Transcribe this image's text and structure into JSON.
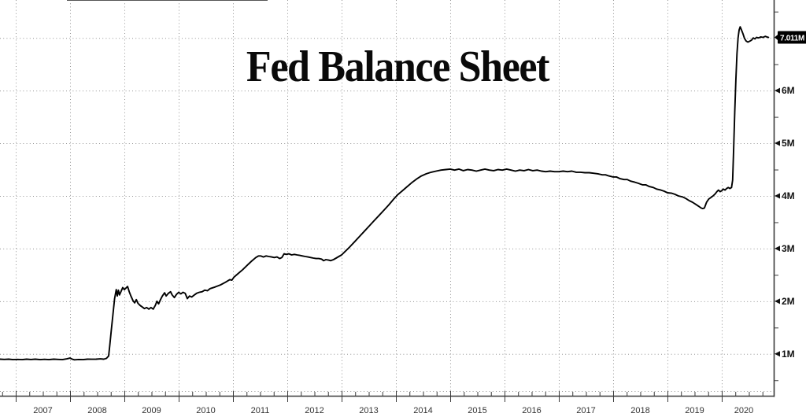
{
  "title": "Fed Balance Sheet",
  "badge": {
    "label": "7.011M",
    "bg_color": "#000000",
    "text_color": "#ffffff",
    "value": 7.011
  },
  "colors": {
    "series": "#000000",
    "grid": "#949494",
    "axis": "#3a3a3a",
    "tick_label": "#333333"
  },
  "y_axis": {
    "tick_labels": [
      "1M",
      "2M",
      "3M",
      "4M",
      "5M",
      "6M"
    ],
    "labeled_values": [
      1,
      2,
      3,
      4,
      5,
      6
    ],
    "grid_values": [
      1,
      2,
      3,
      4,
      5,
      6,
      7
    ],
    "minor_step": 0.5,
    "minor_min": 0.5,
    "minor_max": 7.5
  },
  "x_axis": {
    "year_labels": [
      "2007",
      "2008",
      "2009",
      "2010",
      "2011",
      "2012",
      "2013",
      "2014",
      "2015",
      "2016",
      "2017",
      "2018",
      "2019",
      "2020"
    ],
    "years": [
      2007,
      2008,
      2009,
      2010,
      2011,
      2012,
      2013,
      2014,
      2015,
      2016,
      2017,
      2018,
      2019,
      2020
    ],
    "minor_step": 0.25
  },
  "chart_data": {
    "type": "line",
    "title": "Fed Balance Sheet",
    "xlabel": "",
    "ylabel": "",
    "legend": null,
    "grid": "dotted",
    "xlim": [
      2006.71,
      2020.957
    ],
    "ylim": [
      0.19,
      7.72
    ],
    "last_value": 7.011,
    "points": [
      [
        2006.71,
        0.9
      ],
      [
        2006.79,
        0.895
      ],
      [
        2006.87,
        0.9
      ],
      [
        2006.95,
        0.89
      ],
      [
        2007.03,
        0.895
      ],
      [
        2007.12,
        0.89
      ],
      [
        2007.2,
        0.9
      ],
      [
        2007.28,
        0.893
      ],
      [
        2007.36,
        0.9
      ],
      [
        2007.45,
        0.89
      ],
      [
        2007.53,
        0.897
      ],
      [
        2007.61,
        0.89
      ],
      [
        2007.7,
        0.9
      ],
      [
        2007.78,
        0.895
      ],
      [
        2007.86,
        0.89
      ],
      [
        2007.94,
        0.905
      ],
      [
        2008.0,
        0.92
      ],
      [
        2008.04,
        0.9
      ],
      [
        2008.08,
        0.888
      ],
      [
        2008.16,
        0.893
      ],
      [
        2008.24,
        0.89
      ],
      [
        2008.32,
        0.9
      ],
      [
        2008.4,
        0.898
      ],
      [
        2008.48,
        0.9
      ],
      [
        2008.56,
        0.905
      ],
      [
        2008.62,
        0.9
      ],
      [
        2008.67,
        0.915
      ],
      [
        2008.71,
        0.96
      ],
      [
        2008.73,
        1.15
      ],
      [
        2008.76,
        1.45
      ],
      [
        2008.79,
        1.75
      ],
      [
        2008.82,
        2.05
      ],
      [
        2008.85,
        2.22
      ],
      [
        2008.87,
        2.1
      ],
      [
        2008.89,
        2.21
      ],
      [
        2008.91,
        2.12
      ],
      [
        2008.94,
        2.19
      ],
      [
        2008.97,
        2.26
      ],
      [
        2009.0,
        2.22
      ],
      [
        2009.03,
        2.25
      ],
      [
        2009.06,
        2.28
      ],
      [
        2009.09,
        2.18
      ],
      [
        2009.12,
        2.1
      ],
      [
        2009.16,
        2.01
      ],
      [
        2009.19,
        1.97
      ],
      [
        2009.22,
        2.03
      ],
      [
        2009.25,
        1.96
      ],
      [
        2009.29,
        1.92
      ],
      [
        2009.33,
        1.89
      ],
      [
        2009.37,
        1.86
      ],
      [
        2009.41,
        1.88
      ],
      [
        2009.45,
        1.85
      ],
      [
        2009.49,
        1.88
      ],
      [
        2009.53,
        1.85
      ],
      [
        2009.57,
        1.92
      ],
      [
        2009.6,
        2.0
      ],
      [
        2009.63,
        1.95
      ],
      [
        2009.67,
        2.04
      ],
      [
        2009.7,
        2.1
      ],
      [
        2009.74,
        2.16
      ],
      [
        2009.77,
        2.1
      ],
      [
        2009.81,
        2.15
      ],
      [
        2009.85,
        2.18
      ],
      [
        2009.88,
        2.12
      ],
      [
        2009.92,
        2.07
      ],
      [
        2009.96,
        2.13
      ],
      [
        2010.0,
        2.17
      ],
      [
        2010.04,
        2.14
      ],
      [
        2010.08,
        2.17
      ],
      [
        2010.12,
        2.15
      ],
      [
        2010.16,
        2.05
      ],
      [
        2010.2,
        2.1
      ],
      [
        2010.24,
        2.08
      ],
      [
        2010.29,
        2.12
      ],
      [
        2010.33,
        2.15
      ],
      [
        2010.38,
        2.17
      ],
      [
        2010.43,
        2.18
      ],
      [
        2010.48,
        2.21
      ],
      [
        2010.53,
        2.2
      ],
      [
        2010.58,
        2.24
      ],
      [
        2010.67,
        2.27
      ],
      [
        2010.77,
        2.31
      ],
      [
        2010.86,
        2.36
      ],
      [
        2010.94,
        2.41
      ],
      [
        2010.98,
        2.4
      ],
      [
        2011.02,
        2.46
      ],
      [
        2011.1,
        2.53
      ],
      [
        2011.18,
        2.6
      ],
      [
        2011.26,
        2.68
      ],
      [
        2011.34,
        2.76
      ],
      [
        2011.42,
        2.83
      ],
      [
        2011.47,
        2.86
      ],
      [
        2011.51,
        2.86
      ],
      [
        2011.56,
        2.84
      ],
      [
        2011.61,
        2.86
      ],
      [
        2011.66,
        2.85
      ],
      [
        2011.71,
        2.84
      ],
      [
        2011.76,
        2.83
      ],
      [
        2011.81,
        2.84
      ],
      [
        2011.86,
        2.81
      ],
      [
        2011.9,
        2.83
      ],
      [
        2011.94,
        2.9
      ],
      [
        2011.98,
        2.89
      ],
      [
        2012.03,
        2.9
      ],
      [
        2012.08,
        2.88
      ],
      [
        2012.13,
        2.89
      ],
      [
        2012.18,
        2.88
      ],
      [
        2012.23,
        2.87
      ],
      [
        2012.28,
        2.86
      ],
      [
        2012.33,
        2.85
      ],
      [
        2012.38,
        2.84
      ],
      [
        2012.43,
        2.83
      ],
      [
        2012.48,
        2.82
      ],
      [
        2012.53,
        2.81
      ],
      [
        2012.58,
        2.81
      ],
      [
        2012.63,
        2.8
      ],
      [
        2012.67,
        2.77
      ],
      [
        2012.71,
        2.79
      ],
      [
        2012.76,
        2.78
      ],
      [
        2012.8,
        2.77
      ],
      [
        2012.85,
        2.79
      ],
      [
        2012.9,
        2.82
      ],
      [
        2012.95,
        2.85
      ],
      [
        2013.0,
        2.88
      ],
      [
        2013.07,
        2.95
      ],
      [
        2013.15,
        3.03
      ],
      [
        2013.24,
        3.13
      ],
      [
        2013.33,
        3.23
      ],
      [
        2013.42,
        3.33
      ],
      [
        2013.51,
        3.43
      ],
      [
        2013.6,
        3.53
      ],
      [
        2013.69,
        3.63
      ],
      [
        2013.78,
        3.73
      ],
      [
        2013.87,
        3.83
      ],
      [
        2013.96,
        3.94
      ],
      [
        2014.03,
        4.02
      ],
      [
        2014.11,
        4.09
      ],
      [
        2014.2,
        4.17
      ],
      [
        2014.29,
        4.25
      ],
      [
        2014.38,
        4.32
      ],
      [
        2014.47,
        4.38
      ],
      [
        2014.56,
        4.42
      ],
      [
        2014.65,
        4.45
      ],
      [
        2014.74,
        4.47
      ],
      [
        2014.83,
        4.49
      ],
      [
        2014.92,
        4.5
      ],
      [
        2015.0,
        4.51
      ],
      [
        2015.08,
        4.49
      ],
      [
        2015.16,
        4.51
      ],
      [
        2015.24,
        4.48
      ],
      [
        2015.32,
        4.5
      ],
      [
        2015.4,
        4.49
      ],
      [
        2015.48,
        4.47
      ],
      [
        2015.56,
        4.49
      ],
      [
        2015.64,
        4.51
      ],
      [
        2015.72,
        4.49
      ],
      [
        2015.8,
        4.48
      ],
      [
        2015.88,
        4.5
      ],
      [
        2015.96,
        4.49
      ],
      [
        2016.04,
        4.51
      ],
      [
        2016.12,
        4.49
      ],
      [
        2016.2,
        4.47
      ],
      [
        2016.28,
        4.49
      ],
      [
        2016.36,
        4.48
      ],
      [
        2016.44,
        4.5
      ],
      [
        2016.52,
        4.48
      ],
      [
        2016.6,
        4.49
      ],
      [
        2016.68,
        4.47
      ],
      [
        2016.76,
        4.46
      ],
      [
        2016.84,
        4.47
      ],
      [
        2016.92,
        4.46
      ],
      [
        2017.0,
        4.46
      ],
      [
        2017.08,
        4.47
      ],
      [
        2017.16,
        4.46
      ],
      [
        2017.24,
        4.47
      ],
      [
        2017.32,
        4.45
      ],
      [
        2017.4,
        4.45
      ],
      [
        2017.48,
        4.44
      ],
      [
        2017.56,
        4.44
      ],
      [
        2017.64,
        4.43
      ],
      [
        2017.72,
        4.42
      ],
      [
        2017.8,
        4.4
      ],
      [
        2017.86,
        4.4
      ],
      [
        2017.92,
        4.38
      ],
      [
        2018.0,
        4.36
      ],
      [
        2018.06,
        4.36
      ],
      [
        2018.12,
        4.33
      ],
      [
        2018.2,
        4.31
      ],
      [
        2018.26,
        4.31
      ],
      [
        2018.32,
        4.28
      ],
      [
        2018.4,
        4.26
      ],
      [
        2018.46,
        4.24
      ],
      [
        2018.54,
        4.21
      ],
      [
        2018.6,
        4.21
      ],
      [
        2018.66,
        4.18
      ],
      [
        2018.74,
        4.16
      ],
      [
        2018.8,
        4.13
      ],
      [
        2018.88,
        4.11
      ],
      [
        2018.94,
        4.09
      ],
      [
        2019.0,
        4.06
      ],
      [
        2019.08,
        4.05
      ],
      [
        2019.14,
        4.03
      ],
      [
        2019.2,
        4.0
      ],
      [
        2019.28,
        3.98
      ],
      [
        2019.34,
        3.95
      ],
      [
        2019.4,
        3.91
      ],
      [
        2019.46,
        3.88
      ],
      [
        2019.52,
        3.84
      ],
      [
        2019.58,
        3.8
      ],
      [
        2019.62,
        3.77
      ],
      [
        2019.65,
        3.76
      ],
      [
        2019.68,
        3.77
      ],
      [
        2019.72,
        3.88
      ],
      [
        2019.76,
        3.94
      ],
      [
        2019.8,
        3.97
      ],
      [
        2019.84,
        4.0
      ],
      [
        2019.88,
        4.04
      ],
      [
        2019.91,
        4.08
      ],
      [
        2019.94,
        4.11
      ],
      [
        2019.97,
        4.08
      ],
      [
        2020.0,
        4.1
      ],
      [
        2020.03,
        4.13
      ],
      [
        2020.06,
        4.11
      ],
      [
        2020.09,
        4.14
      ],
      [
        2020.12,
        4.16
      ],
      [
        2020.15,
        4.14
      ],
      [
        2020.18,
        4.16
      ],
      [
        2020.2,
        4.3
      ],
      [
        2020.22,
        4.9
      ],
      [
        2020.24,
        5.6
      ],
      [
        2020.26,
        6.2
      ],
      [
        2020.28,
        6.7
      ],
      [
        2020.3,
        7.0
      ],
      [
        2020.32,
        7.15
      ],
      [
        2020.34,
        7.21
      ],
      [
        2020.36,
        7.16
      ],
      [
        2020.39,
        7.08
      ],
      [
        2020.42,
        6.99
      ],
      [
        2020.45,
        6.94
      ],
      [
        2020.48,
        6.92
      ],
      [
        2020.52,
        6.94
      ],
      [
        2020.55,
        6.96
      ],
      [
        2020.58,
        7.0
      ],
      [
        2020.61,
        6.98
      ],
      [
        2020.64,
        7.01
      ],
      [
        2020.68,
        7.0
      ],
      [
        2020.72,
        7.02
      ],
      [
        2020.76,
        7.01
      ],
      [
        2020.8,
        7.03
      ],
      [
        2020.83,
        7.02
      ],
      [
        2020.86,
        7.011
      ]
    ]
  }
}
